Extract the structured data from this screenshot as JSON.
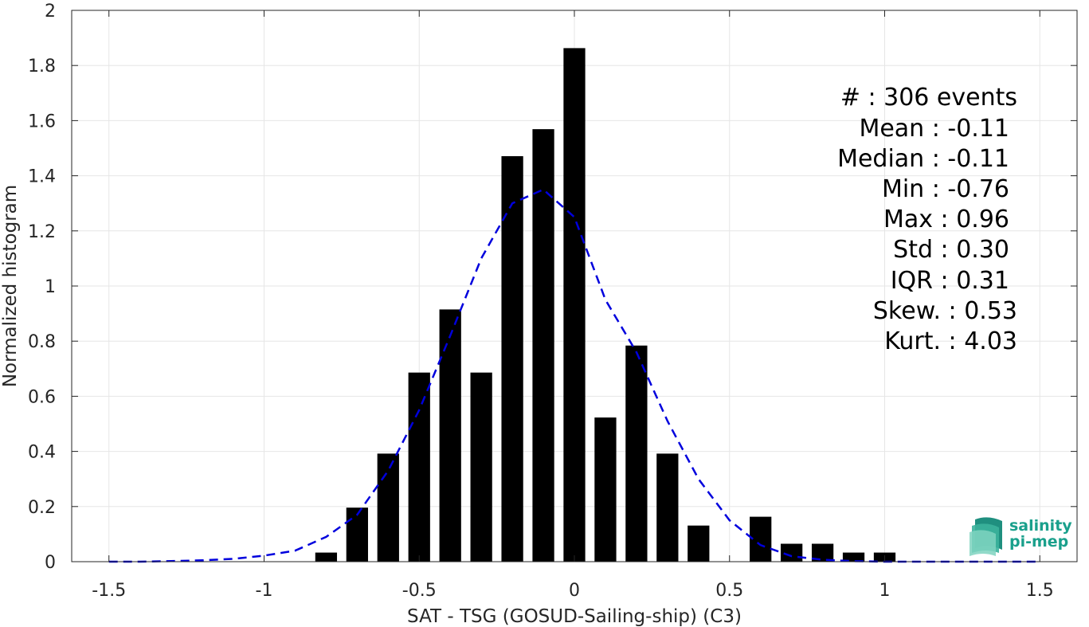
{
  "chart_data": {
    "type": "bar",
    "xlabel": "SAT - TSG (GOSUD-Sailing-ship) (C3)",
    "ylabel": "Normalized histogram",
    "xlim": [
      -1.62,
      1.62
    ],
    "ylim": [
      0,
      2
    ],
    "xticks": [
      -1.5,
      -1,
      -0.5,
      0,
      0.5,
      1,
      1.5
    ],
    "xtick_labels": [
      "-1.5",
      "-1",
      "-0.5",
      "0",
      "0.5",
      "1",
      "1.5"
    ],
    "yticks": [
      0,
      0.2,
      0.4,
      0.6,
      0.8,
      1,
      1.2,
      1.4,
      1.6,
      1.8,
      2
    ],
    "ytick_labels": [
      "0",
      "0.2",
      "0.4",
      "0.6",
      "0.8",
      "1",
      "1.2",
      "1.4",
      "1.6",
      "1.8",
      "2"
    ],
    "grid": true,
    "bar_color": "#000000",
    "bar_width": 0.07,
    "bins": [
      -0.8,
      -0.7,
      -0.6,
      -0.5,
      -0.4,
      -0.3,
      -0.2,
      -0.1,
      0,
      0.1,
      0.2,
      0.3,
      0.4,
      0.5,
      0.6,
      0.7,
      0.8,
      0.9,
      1.0
    ],
    "values": [
      0.033,
      0.196,
      0.392,
      0.686,
      0.915,
      0.686,
      1.471,
      1.569,
      1.863,
      0.523,
      0.784,
      0.392,
      0.131,
      0,
      0.163,
      0.065,
      0.065,
      0.033,
      0.033
    ],
    "fit_curve": {
      "style": "dashed",
      "color": "#0000dd",
      "x": [
        -1.5,
        -1.4,
        -1.3,
        -1.2,
        -1.1,
        -1.0,
        -0.9,
        -0.8,
        -0.7,
        -0.6,
        -0.5,
        -0.4,
        -0.3,
        -0.2,
        -0.1,
        0.0,
        0.1,
        0.2,
        0.3,
        0.4,
        0.5,
        0.6,
        0.7,
        0.8,
        0.9,
        1.0,
        1.1,
        1.2,
        1.3,
        1.4,
        1.5
      ],
      "y": [
        0.0,
        0.0,
        0.002,
        0.005,
        0.01,
        0.022,
        0.04,
        0.09,
        0.17,
        0.33,
        0.55,
        0.82,
        1.1,
        1.3,
        1.35,
        1.25,
        0.95,
        0.76,
        0.51,
        0.3,
        0.15,
        0.06,
        0.02,
        0.007,
        0.002,
        0.0,
        0.0,
        0.0,
        0.0,
        0.0,
        0.0
      ]
    },
    "annotations": [
      "#  : 306 events",
      "Mean : -0.11",
      "Median : -0.11",
      "Min : -0.76",
      "Max : 0.96",
      "Std : 0.30",
      "IQR : 0.31",
      "Skew. : 0.53",
      "Kurt. : 4.03"
    ]
  },
  "logo": {
    "line1": "salinity",
    "line2": "pi-mep"
  }
}
